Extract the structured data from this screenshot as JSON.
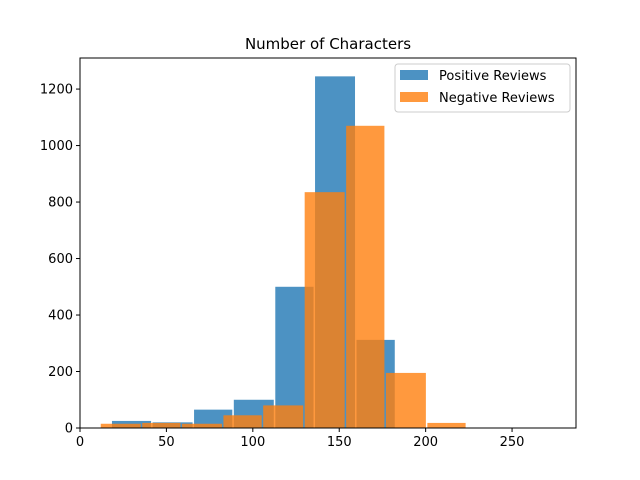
{
  "chart_data": {
    "type": "bar",
    "title": "Number of Characters",
    "xlabel": "",
    "ylabel": "",
    "xlim": [
      0,
      287
    ],
    "ylim": [
      0,
      1310
    ],
    "x_ticks": [
      0,
      50,
      100,
      150,
      200,
      250
    ],
    "y_ticks": [
      0,
      200,
      400,
      600,
      800,
      1000,
      1200
    ],
    "grid": false,
    "legend_position": "top-right",
    "series": [
      {
        "name": "Positive Reviews",
        "color": "#1f77b4",
        "opacity": 0.8,
        "bins": [
          {
            "x0": 18.5,
            "x1": 42,
            "value": 25
          },
          {
            "x0": 42,
            "x1": 66,
            "value": 20
          },
          {
            "x0": 66,
            "x1": 89,
            "value": 65
          },
          {
            "x0": 89,
            "x1": 113,
            "value": 100
          },
          {
            "x0": 113,
            "x1": 136,
            "value": 500
          },
          {
            "x0": 136,
            "x1": 160,
            "value": 1245
          },
          {
            "x0": 160,
            "x1": 183,
            "value": 312
          },
          {
            "x0": 183,
            "x1": 207,
            "value": 0
          },
          {
            "x0": 207,
            "x1": 231,
            "value": 0
          },
          {
            "x0": 231,
            "x1": 254,
            "value": 0
          },
          {
            "x0": 254,
            "x1": 278,
            "value": 0
          }
        ]
      },
      {
        "name": "Negative Reviews",
        "color": "#ff7f0e",
        "opacity": 0.8,
        "bins": [
          {
            "x0": 12,
            "x1": 36,
            "value": 15
          },
          {
            "x0": 36,
            "x1": 59,
            "value": 18
          },
          {
            "x0": 59,
            "x1": 83,
            "value": 15
          },
          {
            "x0": 83,
            "x1": 106,
            "value": 45
          },
          {
            "x0": 106,
            "x1": 130,
            "value": 80
          },
          {
            "x0": 130,
            "x1": 154,
            "value": 835
          },
          {
            "x0": 154,
            "x1": 177,
            "value": 1070
          },
          {
            "x0": 177,
            "x1": 201,
            "value": 195
          },
          {
            "x0": 201,
            "x1": 224,
            "value": 18
          }
        ]
      }
    ]
  }
}
